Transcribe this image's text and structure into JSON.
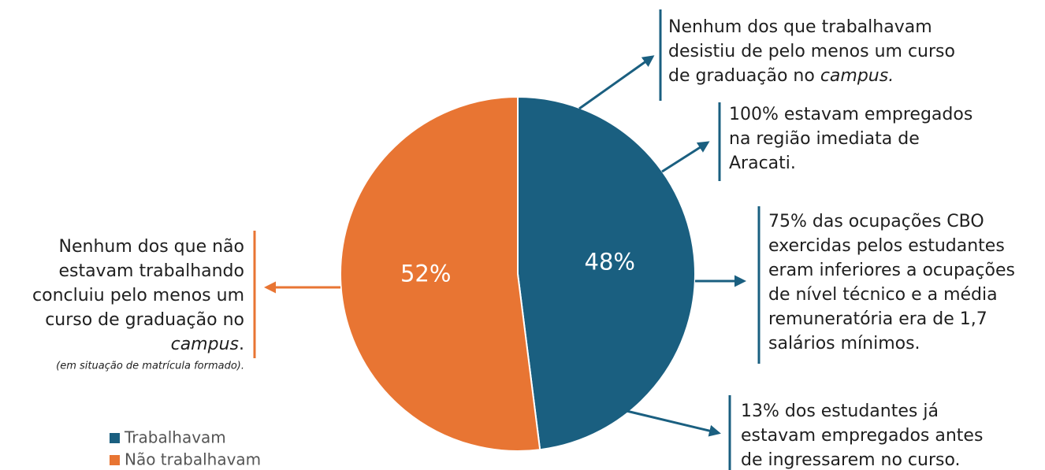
{
  "chart_data": {
    "type": "pie",
    "categories": [
      "Trabalhavam",
      "Não trabalhavam"
    ],
    "values": [
      48,
      52
    ],
    "value_labels": [
      "48%",
      "52%"
    ],
    "colors": [
      "#1a5f80",
      "#e87533"
    ],
    "legend": "bottom-left",
    "annotations": [
      {
        "lines": [
          [
            {
              "text": "Nenhum dos que trabalhavam"
            }
          ],
          [
            {
              "text": "desistiu de pelo menos um curso"
            }
          ],
          [
            {
              "text": "de graduação no "
            },
            {
              "text": "campus.",
              "style": "italic"
            }
          ]
        ]
      },
      {
        "lines": [
          [
            {
              "text": "100%  estavam empregados"
            }
          ],
          [
            {
              "text": "na região imediata de"
            }
          ],
          [
            {
              "text": "Aracati."
            }
          ]
        ]
      },
      {
        "lines": [
          [
            {
              "text": "75% das ocupações CBO"
            }
          ],
          [
            {
              "text": "exercidas pelos estudantes"
            }
          ],
          [
            {
              "text": "eram inferiores a ocupações"
            }
          ],
          [
            {
              "text": "de nível técnico e a média"
            }
          ],
          [
            {
              "text": "remuneratória era de 1,7"
            }
          ],
          [
            {
              "text": "salários mínimos."
            }
          ]
        ]
      },
      {
        "lines": [
          [
            {
              "text": "13% dos estudantes já"
            }
          ],
          [
            {
              "text": "estavam empregados antes"
            }
          ],
          [
            {
              "text": "de ingressarem no curso."
            }
          ]
        ]
      },
      {
        "lines": [
          [
            {
              "text": "Nenhum dos que não"
            }
          ],
          [
            {
              "text": "estavam trabalhando"
            }
          ],
          [
            {
              "text": "concluiu pelo menos um"
            }
          ],
          [
            {
              "text": "curso de graduação no"
            }
          ],
          [
            {
              "text": "campus",
              "style": "italic"
            },
            {
              "text": "."
            }
          ]
        ],
        "note": "(em situação de matrícula formado)."
      }
    ]
  }
}
